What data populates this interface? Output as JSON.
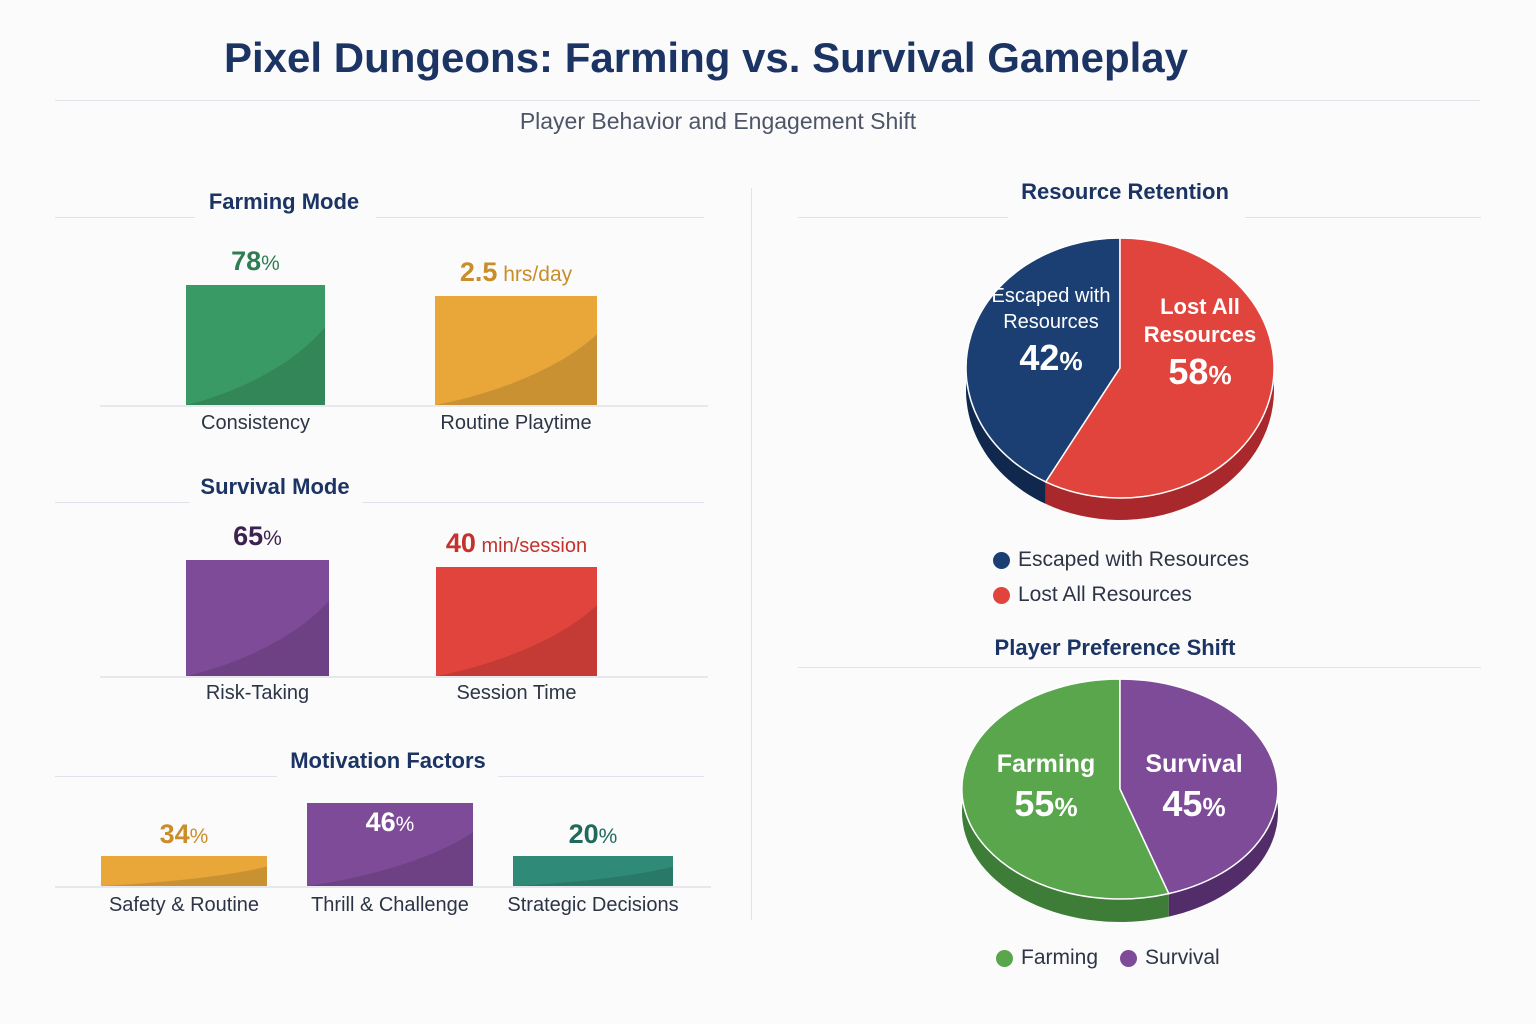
{
  "title": "Pixel Dungeons: Farming vs. Survival Gameplay",
  "subtitle": "Player Behavior and Engagement Shift",
  "colors": {
    "green": "#3a9a66",
    "gold": "#e9a73a",
    "purple": "#7e4b98",
    "red": "#e0443c",
    "navy": "#1c3f73",
    "teal": "#2f8b78",
    "pie_green": "#5aa64c"
  },
  "chart_data": [
    {
      "type": "bar",
      "title": "Farming Mode",
      "categories": [
        "Consistency",
        "Routine Playtime"
      ],
      "values": [
        78,
        2.5
      ],
      "display_values": [
        "78",
        "2.5"
      ],
      "units": [
        "%",
        "hrs/day"
      ],
      "colors": [
        "#3a9a66",
        "#e9a73a"
      ],
      "value_colors": [
        "#2f7d53",
        "#c98d2a"
      ]
    },
    {
      "type": "bar",
      "title": "Survival Mode",
      "categories": [
        "Risk-Taking",
        "Session Time"
      ],
      "values": [
        65,
        40
      ],
      "display_values": [
        "65",
        "40"
      ],
      "units": [
        "%",
        "min/session"
      ],
      "colors": [
        "#7e4b98",
        "#e0443c"
      ],
      "value_colors": [
        "#3d2150",
        "#c6312b"
      ]
    },
    {
      "type": "bar",
      "title": "Motivation Factors",
      "categories": [
        "Safety & Routine",
        "Thrill & Challenge",
        "Strategic Decisions"
      ],
      "values": [
        34,
        46,
        20
      ],
      "display_values": [
        "34",
        "46",
        "20"
      ],
      "units": [
        "%",
        "%",
        "%"
      ],
      "colors": [
        "#e9a73a",
        "#7e4b98",
        "#2f8b78"
      ],
      "value_colors": [
        "#c98d2a",
        "#ffffff",
        "#206a5c"
      ]
    },
    {
      "type": "pie",
      "title": "Resource Retention",
      "slices": [
        {
          "label": "Escaped with Resources",
          "value": 42,
          "display": "42",
          "color": "#1c3f73",
          "side": "#10284d",
          "lines": [
            "Escaped with",
            "Resources"
          ]
        },
        {
          "label": "Lost All Resources",
          "value": 58,
          "display": "58",
          "color": "#e0443c",
          "side": "#a8282b",
          "lines": [
            "Lost All",
            "Resources"
          ]
        }
      ],
      "unit": "%"
    },
    {
      "type": "pie",
      "title": "Player Preference Shift",
      "slices": [
        {
          "label": "Farming",
          "value": 55,
          "display": "55",
          "color": "#5aa64c",
          "side": "#3d7d37",
          "lines": [
            "Farming"
          ]
        },
        {
          "label": "Survival",
          "value": 45,
          "display": "45",
          "color": "#7e4b98",
          "side": "#532d6a",
          "lines": [
            "Survival"
          ]
        }
      ],
      "unit": "%"
    }
  ]
}
